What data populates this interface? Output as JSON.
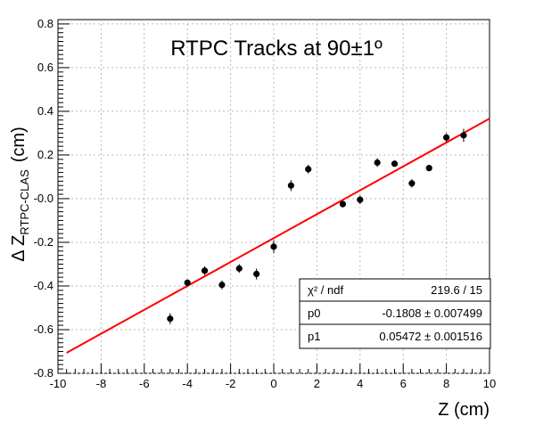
{
  "chart_data": {
    "type": "scatter",
    "title": "RTPC Tracks at 90±1º",
    "xlabel": "Z  (cm)",
    "ylabel": "Δ Z",
    "ylabel_subscript": "RTPC-CLAS",
    "ylabel_unit": "(cm)",
    "xlim": [
      -10,
      10
    ],
    "ylim": [
      -0.8,
      0.82
    ],
    "xticks": [
      -10,
      -8,
      -6,
      -4,
      -2,
      0,
      2,
      4,
      6,
      8,
      10
    ],
    "xtick_labels": [
      "-10",
      "-8",
      "-6",
      "-4",
      "-2",
      "0",
      "2",
      "4",
      "6",
      "8",
      "10"
    ],
    "yticks": [
      -0.8,
      -0.6,
      -0.4,
      -0.2,
      0.0,
      0.2,
      0.4,
      0.6,
      0.8
    ],
    "ytick_labels": [
      "-0.8",
      "-0.6",
      "-0.4",
      "-0.2",
      "-0.0",
      "0.2",
      "0.4",
      "0.6",
      "0.8"
    ],
    "grid": true,
    "points": [
      {
        "x": -4.8,
        "y": -0.55,
        "err": 0.025
      },
      {
        "x": -4.0,
        "y": -0.385,
        "err": 0.015
      },
      {
        "x": -3.2,
        "y": -0.33,
        "err": 0.02
      },
      {
        "x": -2.4,
        "y": -0.395,
        "err": 0.02
      },
      {
        "x": -1.6,
        "y": -0.32,
        "err": 0.02
      },
      {
        "x": -0.8,
        "y": -0.345,
        "err": 0.025
      },
      {
        "x": 0.0,
        "y": -0.22,
        "err": 0.03
      },
      {
        "x": 0.8,
        "y": 0.06,
        "err": 0.025
      },
      {
        "x": 1.6,
        "y": 0.135,
        "err": 0.02
      },
      {
        "x": 3.2,
        "y": -0.025,
        "err": 0.015
      },
      {
        "x": 4.0,
        "y": -0.005,
        "err": 0.02
      },
      {
        "x": 4.8,
        "y": 0.165,
        "err": 0.02
      },
      {
        "x": 5.6,
        "y": 0.16,
        "err": 0.01
      },
      {
        "x": 6.4,
        "y": 0.07,
        "err": 0.02
      },
      {
        "x": 7.2,
        "y": 0.14,
        "err": 0.01
      },
      {
        "x": 8.0,
        "y": 0.28,
        "err": 0.02
      },
      {
        "x": 8.8,
        "y": 0.29,
        "err": 0.03
      }
    ],
    "fit": {
      "p0": -0.1808,
      "p1": 0.05472,
      "x_range": [
        -9.6,
        10
      ],
      "color": "#ff0000"
    },
    "marker_color": "#000000",
    "stats": {
      "chi2_label": "χ² / ndf",
      "chi2_value": "219.6 / 15",
      "p0_label": "p0",
      "p0_value": "-0.1808 ± 0.007499",
      "p1_label": "p1",
      "p1_value": "0.05472 ± 0.001516"
    }
  }
}
